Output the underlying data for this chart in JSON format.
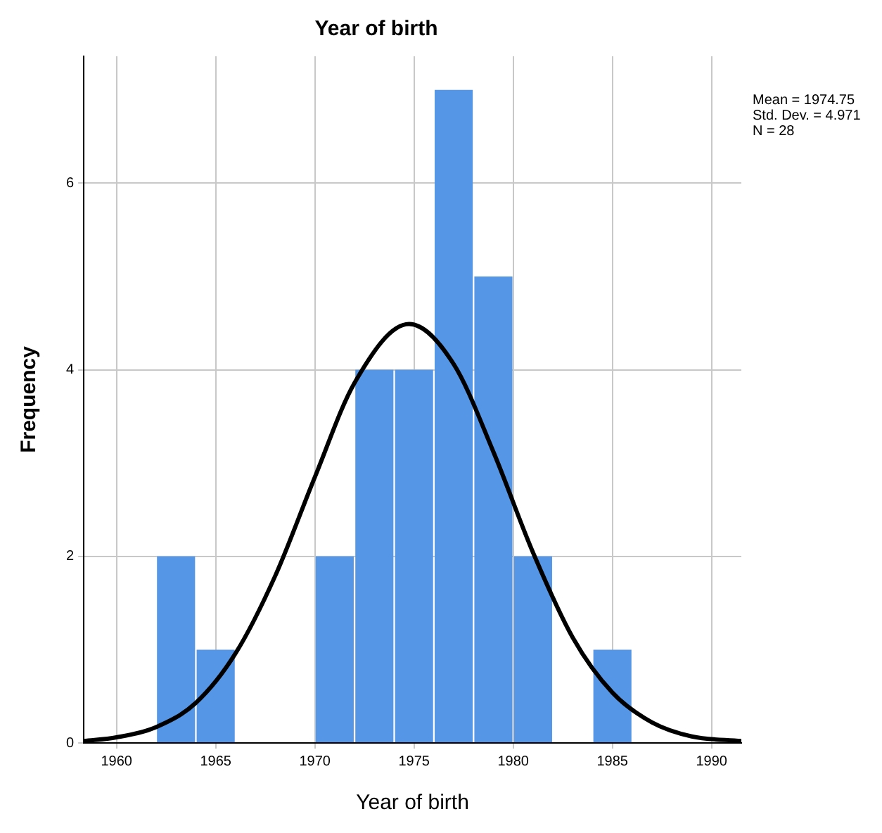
{
  "chart_data": {
    "type": "histogram",
    "title": "Year of birth",
    "xlabel": "Year of birth",
    "ylabel": "Frequency",
    "bins": [
      1962,
      1964,
      1966,
      1968,
      1970,
      1972,
      1974,
      1976,
      1978,
      1980,
      1982,
      1984,
      1986
    ],
    "values": [
      2,
      1,
      0,
      0,
      2,
      4,
      4,
      7,
      5,
      2,
      0,
      1
    ],
    "color": "#5596e6",
    "series": [
      {
        "type": "line",
        "color": "#000000",
        "x": [
          1958.35,
          1960,
          1962,
          1964,
          1966,
          1968,
          1970,
          1972,
          1974.75,
          1977,
          1979,
          1981,
          1983,
          1985,
          1987,
          1989,
          1991.5
        ],
        "values": [
          0.02,
          0.06,
          0.17,
          0.43,
          0.96,
          1.79,
          2.85,
          3.86,
          4.49,
          4.06,
          3.12,
          2.04,
          1.13,
          0.54,
          0.22,
          0.07,
          0.02
        ]
      }
    ],
    "xlim": [
      1958.35,
      1991.5
    ],
    "xticks": [
      1960,
      1965,
      1970,
      1975,
      1980,
      1985,
      1990
    ],
    "ylim": [
      0,
      7.36
    ],
    "yticks": [
      0,
      2,
      4,
      6
    ],
    "grid": true,
    "marker": "none",
    "line_style": "solid",
    "annotations": [
      "Mean = 1974.75",
      "Std. Dev. = 4.971",
      "N = 28"
    ]
  }
}
